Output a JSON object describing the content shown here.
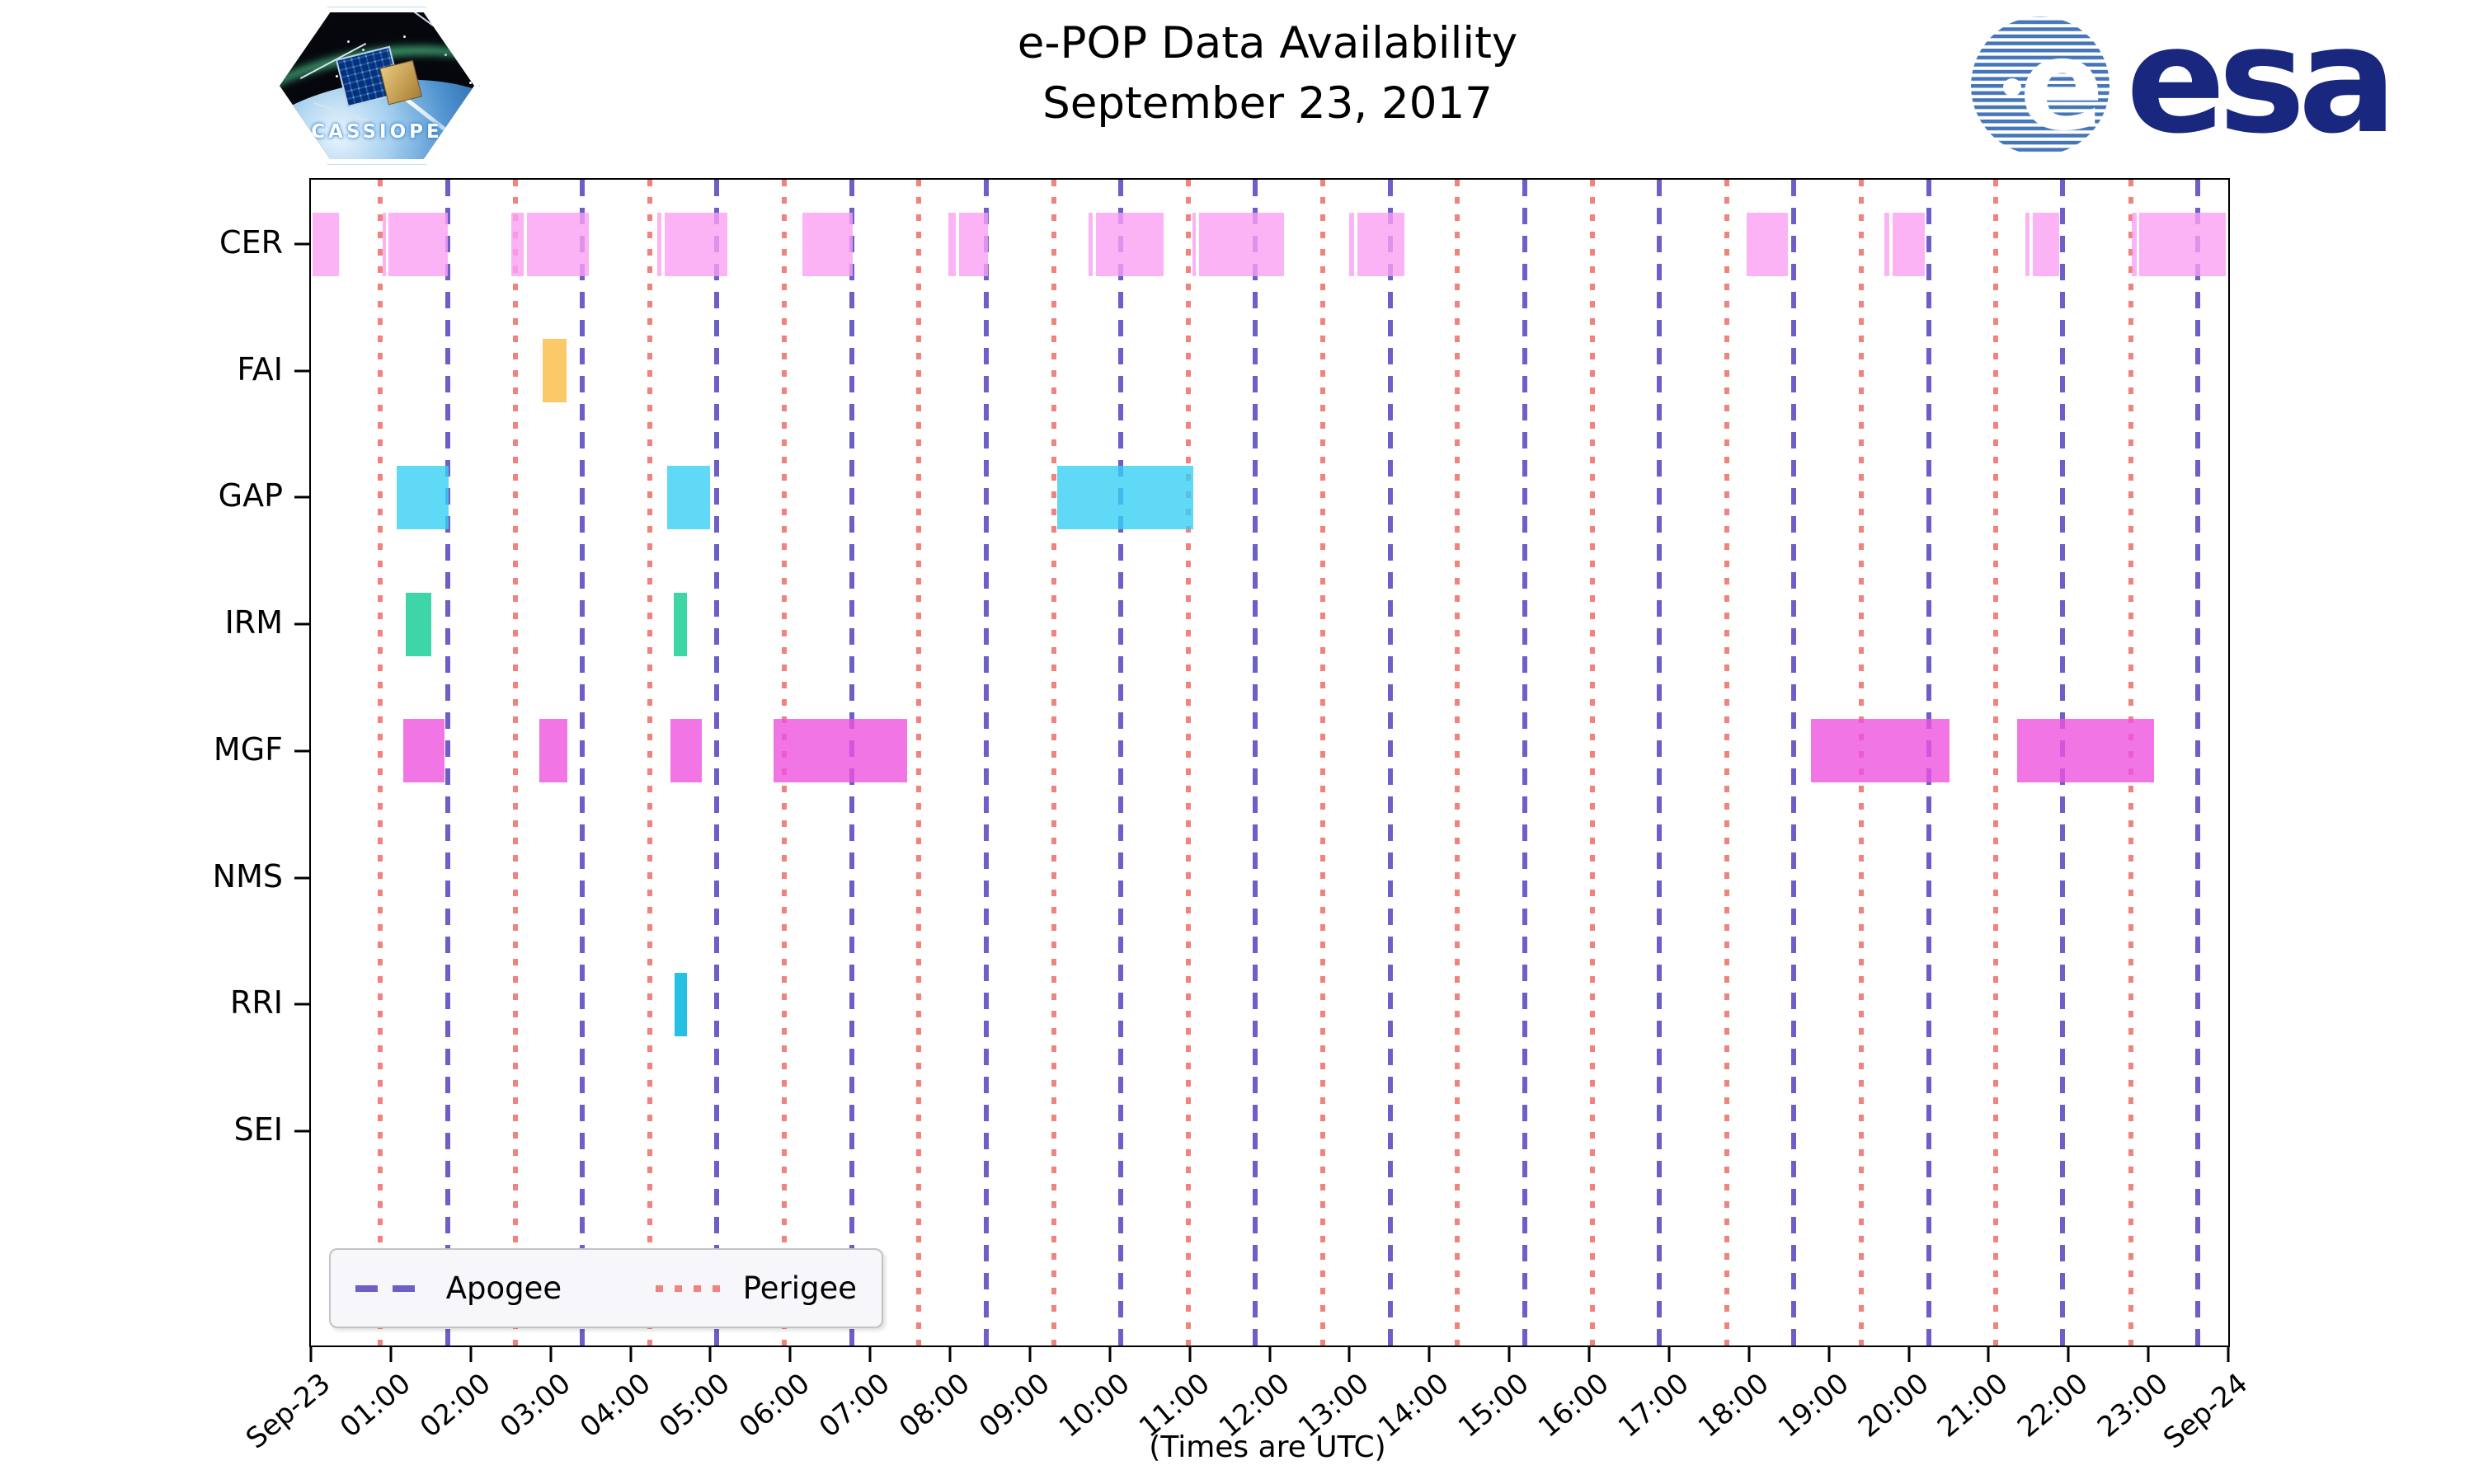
{
  "title": {
    "line1": "e-POP Data Availability",
    "line2": "September 23, 2017"
  },
  "branding": {
    "cassiope_label": "CASSIOPE",
    "esa_wordmark": "esa"
  },
  "legend": {
    "apogee_label": "Apogee",
    "perigee_label": "Perigee"
  },
  "axis_footnote": "(Times are UTC)",
  "colors": {
    "apogee_line": "#6c5fc7",
    "perigee_line": "#f0837d",
    "cer": "rgba(250,160,242,0.8)",
    "fai": "rgba(250,192,77,0.85)",
    "gap": "rgba(55,207,242,0.8)",
    "irm": "rgba(15,204,145,0.8)",
    "mgf": "rgba(237,82,222,0.8)",
    "rri": "rgba(0,181,221,0.85)"
  },
  "chart_data": {
    "type": "gantt-availability-timeline",
    "title": "e-POP Data Availability",
    "subtitle": "September 23, 2017",
    "xlabel": "(Times are UTC)",
    "x_axis": {
      "start_hour": 0,
      "end_hour": 24,
      "tick_interval_hours": 1,
      "tick_labels": [
        "Sep-23",
        "01:00",
        "02:00",
        "03:00",
        "04:00",
        "05:00",
        "06:00",
        "07:00",
        "08:00",
        "09:00",
        "10:00",
        "11:00",
        "12:00",
        "13:00",
        "14:00",
        "15:00",
        "16:00",
        "17:00",
        "18:00",
        "19:00",
        "20:00",
        "21:00",
        "22:00",
        "23:00",
        "Sep-24"
      ]
    },
    "rows": [
      "CER",
      "FAI",
      "GAP",
      "IRM",
      "MGF",
      "NMS",
      "RRI",
      "SEI"
    ],
    "orbit_markers": {
      "apogee": {
        "label": "Apogee",
        "style": "dashed",
        "color": "#6c5fc7",
        "hours": [
          1.71,
          3.4,
          5.08,
          6.77,
          8.45,
          10.14,
          11.82,
          13.51,
          15.19,
          16.88,
          18.56,
          20.25,
          21.93,
          23.62
        ]
      },
      "perigee": {
        "label": "Perigee",
        "style": "dotted",
        "color": "#f0837d",
        "hours": [
          0.87,
          2.56,
          4.24,
          5.93,
          7.61,
          9.3,
          10.98,
          12.67,
          14.35,
          16.04,
          17.72,
          19.41,
          21.09,
          22.78
        ]
      }
    },
    "series": [
      {
        "instrument": "CER",
        "color": "rgba(250,160,242,0.8)",
        "intervals": [
          [
            0.02,
            0.35
          ],
          [
            0.9,
            0.94
          ],
          [
            0.97,
            1.71
          ],
          [
            2.51,
            2.66
          ],
          [
            2.7,
            3.48
          ],
          [
            4.34,
            4.39
          ],
          [
            4.43,
            5.21
          ],
          [
            6.15,
            6.78
          ],
          [
            7.98,
            8.07
          ],
          [
            8.11,
            8.47
          ],
          [
            9.73,
            9.79
          ],
          [
            9.83,
            10.67
          ],
          [
            11.03,
            11.08
          ],
          [
            11.12,
            12.18
          ],
          [
            13.0,
            13.06
          ],
          [
            13.1,
            13.69
          ],
          [
            17.97,
            18.49
          ],
          [
            19.7,
            19.76
          ],
          [
            19.8,
            20.2
          ],
          [
            21.46,
            21.51
          ],
          [
            21.55,
            21.88
          ],
          [
            22.79,
            22.85
          ],
          [
            22.89,
            23.97
          ]
        ]
      },
      {
        "instrument": "FAI",
        "color": "rgba(250,192,77,0.85)",
        "intervals": [
          [
            2.9,
            3.2
          ]
        ]
      },
      {
        "instrument": "GAP",
        "color": "rgba(55,207,242,0.8)",
        "intervals": [
          [
            1.07,
            1.72
          ],
          [
            4.46,
            5.0
          ],
          [
            9.34,
            11.05
          ]
        ]
      },
      {
        "instrument": "IRM",
        "color": "rgba(15,204,145,0.8)",
        "intervals": [
          [
            1.19,
            1.51
          ],
          [
            4.54,
            4.71
          ]
        ]
      },
      {
        "instrument": "MGF",
        "color": "rgba(237,82,222,0.8)",
        "intervals": [
          [
            1.16,
            1.67
          ],
          [
            2.86,
            3.21
          ],
          [
            4.5,
            4.89
          ],
          [
            5.79,
            7.46
          ],
          [
            18.78,
            20.51
          ],
          [
            21.36,
            23.07
          ]
        ]
      },
      {
        "instrument": "NMS",
        "color": "rgba(237,82,222,0.8)",
        "intervals": []
      },
      {
        "instrument": "RRI",
        "color": "rgba(0,181,221,0.85)",
        "intervals": [
          [
            4.55,
            4.71
          ]
        ]
      },
      {
        "instrument": "SEI",
        "color": "rgba(15,204,145,0.8)",
        "intervals": []
      }
    ],
    "layout_hints": {
      "grid": false,
      "legend_position": "bottom-left inside axes",
      "bars_semi_transparent": true
    }
  }
}
